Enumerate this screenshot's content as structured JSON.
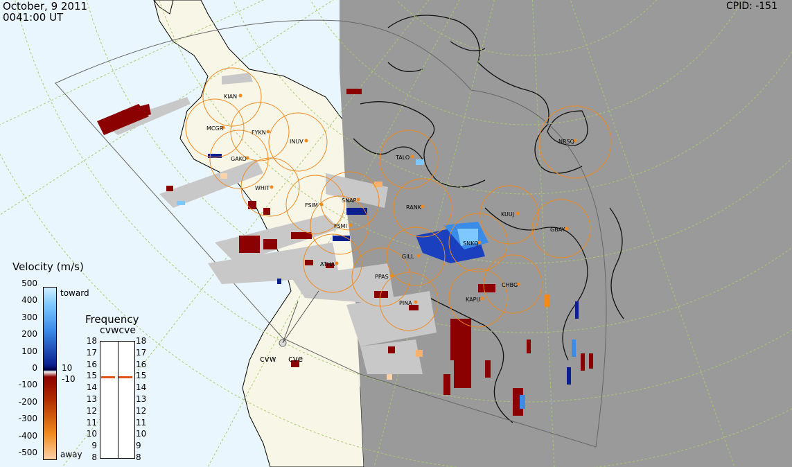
{
  "header": {
    "date": "October, 9 2011",
    "time": "0041:00 UT",
    "cpid": "CPID:  -151"
  },
  "colors": {
    "ocean": "#eaf6fd",
    "land": "#f8f6e6",
    "night": "#9a9a9a",
    "grid_line": "#a9c96f",
    "fov_circle": "#f08a1e",
    "ground_scatter": "#c8c8c8",
    "away_dark": "#8b0000",
    "toward_dark": "#0a1f8f",
    "toward_light": "#7ec8ff"
  },
  "stations": [
    "KIAN",
    "MCGR",
    "FYKN",
    "INUV",
    "GAKO",
    "WHIT",
    "FSIM",
    "SNAP",
    "FSMI",
    "TALO",
    "RANK",
    "KUUJ",
    "NRSQ",
    "GBAY",
    "SNKQ",
    "ATHA",
    "GILL",
    "PPAS",
    "PINA",
    "KAPU",
    "CHBG"
  ],
  "radars": [
    "cvw",
    "cve"
  ],
  "velocity_legend": {
    "title": "Velocity (m/s)",
    "ticks": [
      "500",
      "400",
      "300",
      "200",
      "100",
      "0",
      "-100",
      "-200",
      "-300",
      "-400",
      "-500"
    ],
    "toward": "toward",
    "away": "away",
    "threshold_pos": "10",
    "threshold_neg": "-10"
  },
  "frequency_legend": {
    "title": "Frequency",
    "sub": "cvwcve",
    "ticks": [
      "18",
      "17",
      "16",
      "15",
      "14",
      "13",
      "12",
      "11",
      "10",
      "9",
      "8"
    ],
    "cvw_value": 15,
    "cve_value": 15
  }
}
